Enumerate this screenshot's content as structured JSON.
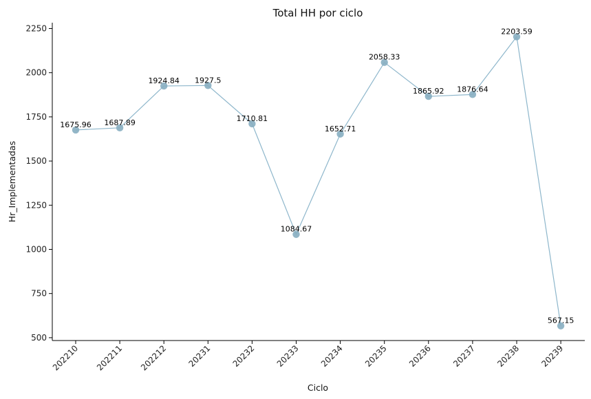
{
  "chart_data": {
    "type": "line",
    "title": "Total HH por ciclo",
    "xlabel": "Ciclo",
    "ylabel": "Hr_Implementadas",
    "categories": [
      "202210",
      "202211",
      "202212",
      "20231",
      "20232",
      "20233",
      "20234",
      "20235",
      "20236",
      "20237",
      "20238",
      "20239"
    ],
    "values": [
      1675.96,
      1687.89,
      1924.84,
      1927.5,
      1710.81,
      1084.67,
      1652.71,
      2058.33,
      1865.92,
      1876.64,
      2203.59,
      567.15
    ],
    "data_labels": [
      "1675.96",
      "1687.89",
      "1924.84",
      "1927.5",
      "1710.81",
      "1084.67",
      "1652.71",
      "2058.33",
      "1865.92",
      "1876.64",
      "2203.59",
      "567.15"
    ],
    "ylim": [
      484,
      2283
    ],
    "yticks": [
      500,
      750,
      1000,
      1250,
      1500,
      1750,
      2000,
      2250
    ],
    "ytick_labels": [
      "500",
      "750",
      "1000",
      "1250",
      "1500",
      "1750",
      "2000",
      "2250"
    ],
    "grid": false,
    "line_color": "#8db6cb",
    "marker_color": "#87aec1"
  }
}
